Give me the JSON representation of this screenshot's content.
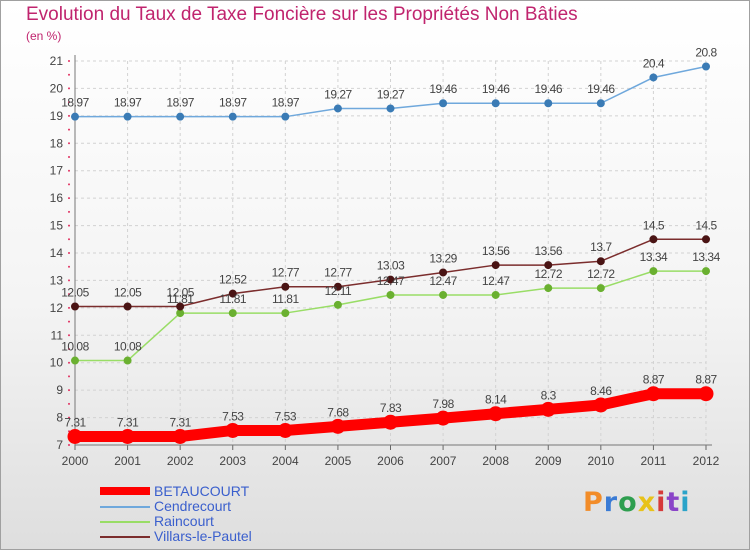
{
  "chart_data": {
    "type": "line",
    "title": "Evolution du Taux de Taxe Foncière sur les Propriétés Non Bâties",
    "ylabel": "(en %)",
    "xlabel": "",
    "x": [
      "2000",
      "2001",
      "2002",
      "2003",
      "2004",
      "2005",
      "2006",
      "2007",
      "2008",
      "2009",
      "2010",
      "2011",
      "2012"
    ],
    "ylim": [
      7,
      21
    ],
    "yticks": [
      "7",
      "8",
      "9",
      "10",
      "11",
      "12",
      "13",
      "14",
      "15",
      "16",
      "17",
      "18",
      "19",
      "20",
      "21"
    ],
    "grid": true,
    "legend_position": "bottom-left",
    "series": [
      {
        "name": "BETAUCOURT",
        "color": "#ff0000",
        "values": [
          7.31,
          7.31,
          7.31,
          7.53,
          7.53,
          7.68,
          7.83,
          7.98,
          8.14,
          8.3,
          8.46,
          8.87,
          8.87
        ],
        "labels": [
          "7.31",
          "7.31",
          "7.31",
          "7.53",
          "7.53",
          "7.68",
          "7.83",
          "7.98",
          "8.14",
          "8.3",
          "8.46",
          "8.87",
          "8.87"
        ]
      },
      {
        "name": "Cendrecourt",
        "color": "#6fa8dc",
        "values": [
          18.97,
          18.97,
          18.97,
          18.97,
          18.97,
          19.27,
          19.27,
          19.46,
          19.46,
          19.46,
          19.46,
          20.4,
          20.8
        ],
        "labels": [
          "18.97",
          "18.97",
          "18.97",
          "18.97",
          "18.97",
          "19.27",
          "19.27",
          "19.46",
          "19.46",
          "19.46",
          "19.46",
          "20.4",
          "20.8"
        ]
      },
      {
        "name": "Raincourt",
        "color": "#99dd66",
        "values": [
          10.08,
          10.08,
          11.81,
          11.81,
          11.81,
          12.11,
          12.47,
          12.47,
          12.47,
          12.72,
          12.72,
          13.34,
          13.34
        ],
        "labels": [
          "10.08",
          "10.08",
          "11.81",
          "11.81",
          "11.81",
          "12.11",
          "12.47",
          "12.47",
          "12.47",
          "12.72",
          "12.72",
          "13.34",
          "13.34"
        ]
      },
      {
        "name": "Villars-le-Pautel",
        "color": "#7b2d2d",
        "values": [
          12.05,
          12.05,
          12.05,
          12.52,
          12.77,
          12.77,
          13.03,
          13.29,
          13.56,
          13.56,
          13.7,
          14.5,
          14.5
        ],
        "labels": [
          "12.05",
          "12.05",
          "12.05",
          "12.52",
          "12.77",
          "12.77",
          "13.03",
          "13.29",
          "13.56",
          "13.56",
          "13.7",
          "14.5",
          "14.5"
        ]
      }
    ]
  },
  "logo": {
    "text": "Proxiti",
    "colors": [
      "#f28c28",
      "#3a7bd5",
      "#2e9e4f",
      "#e8c21a",
      "#d63a3a",
      "#8a44c8",
      "#2aa3c9"
    ]
  }
}
